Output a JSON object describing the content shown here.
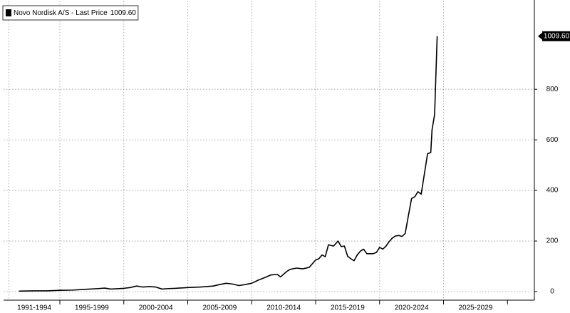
{
  "chart_data": {
    "type": "line",
    "series": [
      {
        "name": "Novo Nordisk A/S - Last Price",
        "last_label": "1009.60",
        "color": "#000000",
        "x": [
          1991.8,
          1993,
          1994,
          1995,
          1996,
          1997,
          1998,
          1998.5,
          1999,
          2000,
          2000.5,
          2001,
          2001.5,
          2002,
          2002.5,
          2003,
          2003.5,
          2004,
          2005,
          2006,
          2007,
          2007.5,
          2008,
          2008.5,
          2009,
          2009.5,
          2010,
          2010.5,
          2011,
          2011.5,
          2012,
          2012.25,
          2012.75,
          2013,
          2013.5,
          2014,
          2014.5,
          2015,
          2015.25,
          2015.5,
          2015.75,
          2016,
          2016.4,
          2016.75,
          2017,
          2017.25,
          2017.5,
          2017.75,
          2018,
          2018.25,
          2018.5,
          2018.75,
          2019,
          2019.5,
          2019.75,
          2020,
          2020.25,
          2020.5,
          2020.75,
          2021,
          2021.25,
          2021.5,
          2021.75,
          2022,
          2022.25,
          2022.5,
          2022.75,
          2023,
          2023.25,
          2023.5,
          2023.75,
          2024,
          2024.1,
          2024.3,
          2024.5
        ],
        "values": [
          2,
          3,
          3,
          5,
          6,
          9,
          12,
          14,
          10,
          13,
          16,
          22,
          18,
          20,
          18,
          10,
          12,
          13,
          16,
          18,
          22,
          28,
          33,
          30,
          24,
          28,
          33,
          45,
          55,
          66,
          68,
          58,
          80,
          88,
          93,
          90,
          96,
          125,
          130,
          145,
          138,
          185,
          180,
          200,
          178,
          180,
          140,
          130,
          122,
          145,
          160,
          168,
          150,
          150,
          155,
          175,
          168,
          180,
          198,
          212,
          220,
          222,
          218,
          230,
          300,
          368,
          375,
          395,
          385,
          465,
          545,
          550,
          640,
          700,
          1009.6
        ]
      }
    ],
    "x_periods": [
      {
        "label": "1991-1994",
        "from": 1991,
        "to": 1995
      },
      {
        "label": "1995-1999",
        "from": 1995,
        "to": 2000
      },
      {
        "label": "2000-2004",
        "from": 2000,
        "to": 2005
      },
      {
        "label": "2005-2009",
        "from": 2005,
        "to": 2010
      },
      {
        "label": "2010-2014",
        "from": 2010,
        "to": 2015
      },
      {
        "label": "2015-2019",
        "from": 2015,
        "to": 2020
      },
      {
        "label": "2020-2024",
        "from": 2020,
        "to": 2025
      },
      {
        "label": "2025-2029",
        "from": 2025,
        "to": 2030
      }
    ],
    "xlim": [
      1990.6,
      2032.1
    ],
    "ylim": [
      0,
      1150
    ],
    "yticks": [
      0,
      200,
      400,
      600,
      800
    ],
    "y_axis_side": "right",
    "grid": true
  }
}
